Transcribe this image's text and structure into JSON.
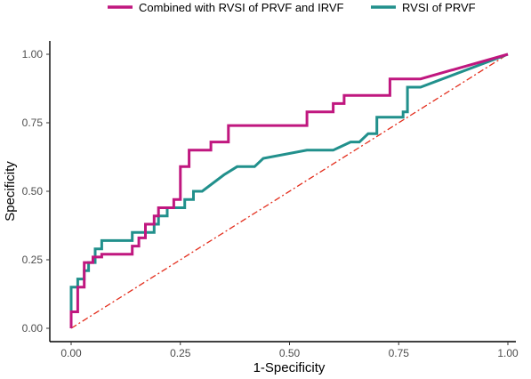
{
  "chart_data": {
    "type": "line",
    "title": "",
    "xlabel": "1-Specificity",
    "ylabel": "Specificity",
    "xlim": [
      0,
      1
    ],
    "ylim": [
      0,
      1
    ],
    "x_ticks": [
      "0.00",
      "0.25",
      "0.50",
      "0.75",
      "1.00"
    ],
    "y_ticks": [
      "0.00",
      "0.25",
      "0.50",
      "0.75",
      "1.00"
    ],
    "grid": false,
    "legend_position": "top",
    "series": [
      {
        "name": "Combined with RVSI of PRVF and IRVF",
        "color": "#C0177F",
        "x": [
          0,
          0,
          0.015,
          0.015,
          0.03,
          0.03,
          0.05,
          0.05,
          0.07,
          0.07,
          0.14,
          0.14,
          0.155,
          0.155,
          0.17,
          0.17,
          0.19,
          0.19,
          0.2,
          0.2,
          0.235,
          0.235,
          0.25,
          0.25,
          0.27,
          0.27,
          0.32,
          0.32,
          0.36,
          0.36,
          0.54,
          0.54,
          0.6,
          0.6,
          0.625,
          0.625,
          0.73,
          0.73,
          0.8,
          1.0
        ],
        "y": [
          0,
          0.06,
          0.06,
          0.15,
          0.15,
          0.24,
          0.24,
          0.26,
          0.26,
          0.27,
          0.27,
          0.3,
          0.3,
          0.33,
          0.33,
          0.38,
          0.38,
          0.41,
          0.41,
          0.44,
          0.44,
          0.47,
          0.47,
          0.59,
          0.59,
          0.65,
          0.65,
          0.68,
          0.68,
          0.74,
          0.74,
          0.79,
          0.79,
          0.82,
          0.82,
          0.85,
          0.85,
          0.91,
          0.91,
          1.0
        ]
      },
      {
        "name": "RVSI of PRVF",
        "color": "#21908C",
        "x": [
          0,
          0,
          0.015,
          0.015,
          0.03,
          0.03,
          0.04,
          0.04,
          0.055,
          0.055,
          0.07,
          0.07,
          0.14,
          0.14,
          0.19,
          0.19,
          0.2,
          0.2,
          0.22,
          0.22,
          0.26,
          0.26,
          0.28,
          0.28,
          0.3,
          0.35,
          0.38,
          0.42,
          0.42,
          0.44,
          0.54,
          0.6,
          0.6,
          0.64,
          0.64,
          0.66,
          0.68,
          0.7,
          0.7,
          0.76,
          0.76,
          0.77,
          0.77,
          0.8,
          1.0
        ],
        "y": [
          0,
          0.15,
          0.15,
          0.18,
          0.18,
          0.21,
          0.21,
          0.24,
          0.24,
          0.29,
          0.29,
          0.32,
          0.32,
          0.35,
          0.35,
          0.38,
          0.38,
          0.41,
          0.41,
          0.44,
          0.44,
          0.47,
          0.47,
          0.5,
          0.5,
          0.56,
          0.59,
          0.59,
          0.59,
          0.62,
          0.65,
          0.65,
          0.65,
          0.68,
          0.68,
          0.68,
          0.71,
          0.71,
          0.77,
          0.77,
          0.79,
          0.79,
          0.88,
          0.88,
          1.0
        ]
      },
      {
        "name": "",
        "color": "#E32D1C",
        "dash": "dashdot",
        "x": [
          0,
          1
        ],
        "y": [
          0,
          1
        ]
      }
    ]
  }
}
